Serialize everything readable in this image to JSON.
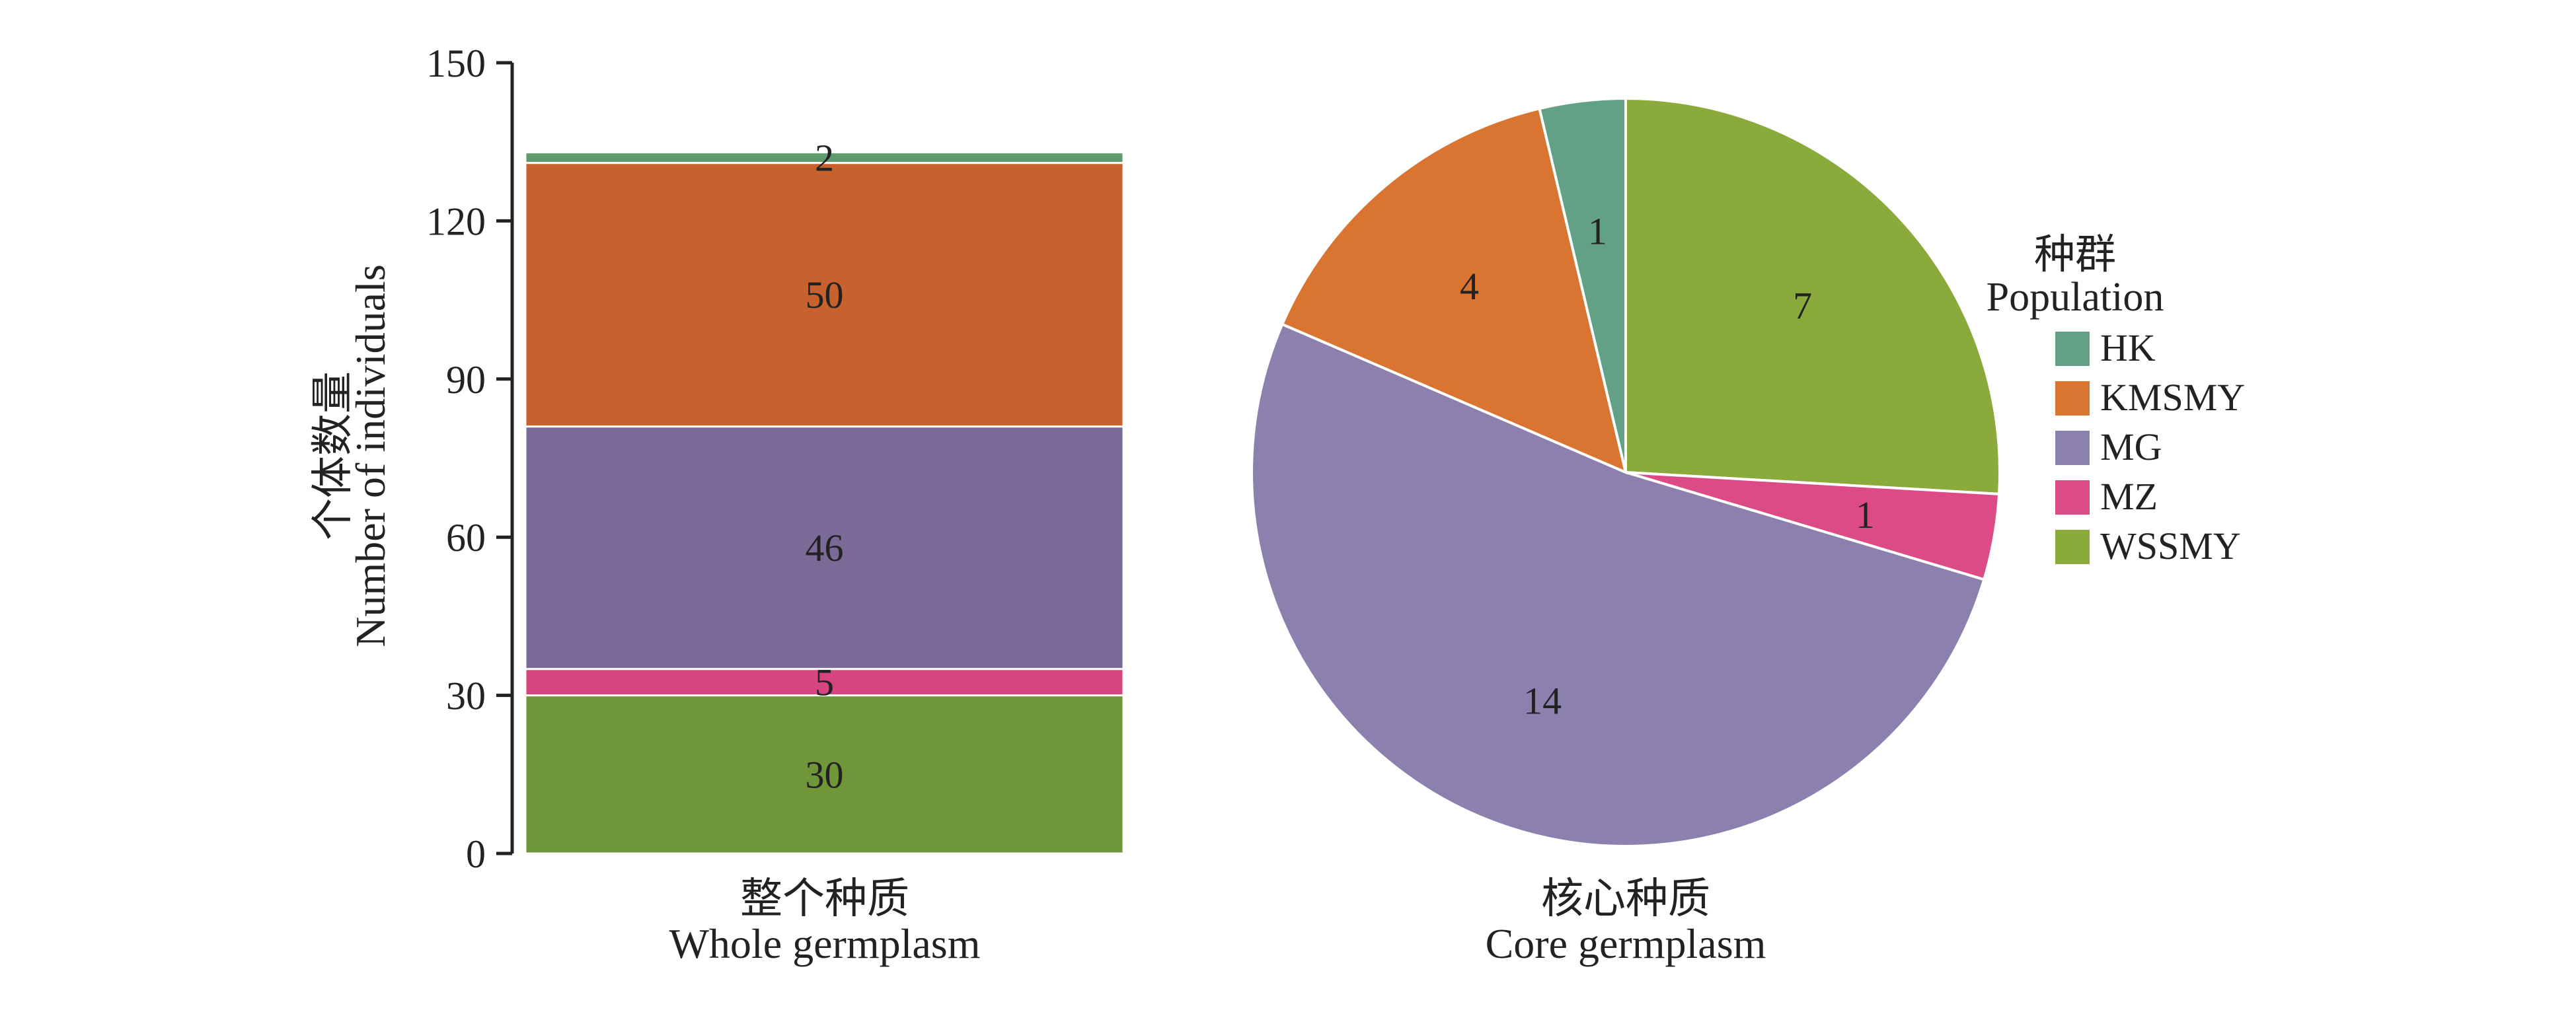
{
  "chart_data": [
    {
      "type": "bar",
      "stacked": true,
      "categories": [
        "整个种质\nWhole germplasm"
      ],
      "category_label_zh": "整个种质",
      "category_label_en": "Whole germplasm",
      "ylabel_zh": "个体数量",
      "ylabel_en": "Number of individuals",
      "ylim": [
        0,
        150
      ],
      "yticks": [
        0,
        30,
        60,
        90,
        120,
        150
      ],
      "series": [
        {
          "name": "WSSMY",
          "values": [
            30
          ]
        },
        {
          "name": "MZ",
          "values": [
            5
          ]
        },
        {
          "name": "MG",
          "values": [
            46
          ]
        },
        {
          "name": "KMSMY",
          "values": [
            50
          ]
        },
        {
          "name": "HK",
          "values": [
            2
          ]
        }
      ],
      "grid": false
    },
    {
      "type": "pie",
      "category_label_zh": "核心种质",
      "category_label_en": "Core germplasm",
      "slices": [
        {
          "name": "WSSMY",
          "value": 7
        },
        {
          "name": "MZ",
          "value": 1
        },
        {
          "name": "MG",
          "value": 14
        },
        {
          "name": "KMSMY",
          "value": 4
        },
        {
          "name": "HK",
          "value": 1
        }
      ],
      "start_angle_deg": 90,
      "direction": "clockwise"
    }
  ],
  "legend": {
    "title_zh": "种群",
    "title_en": "Population",
    "placement": "right",
    "items": [
      {
        "name": "HK",
        "color": "#63a186"
      },
      {
        "name": "KMSMY",
        "color": "#d97431"
      },
      {
        "name": "MG",
        "color": "#8c81ae"
      },
      {
        "name": "MZ",
        "color": "#dc4b86"
      },
      {
        "name": "WSSMY",
        "color": "#8aab3c"
      }
    ]
  },
  "bar_colors": {
    "HK": "#5f9b6c",
    "KMSMY": "#c7612d",
    "MG": "#7b6a98",
    "MZ": "#d6457f",
    "WSSMY": "#6f973a"
  }
}
